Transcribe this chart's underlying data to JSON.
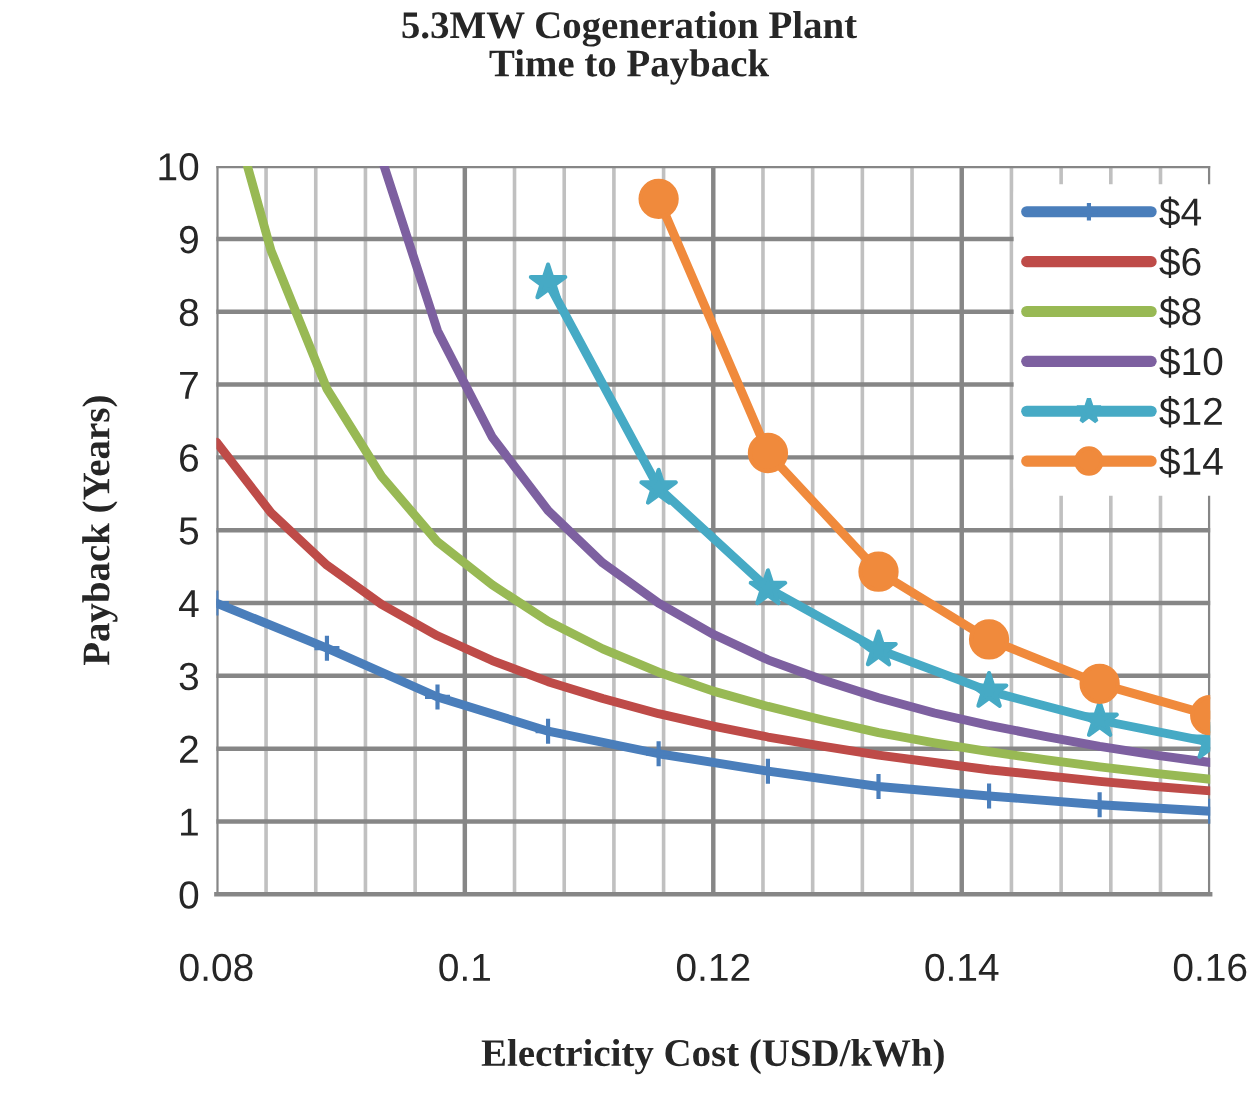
{
  "chart_data": {
    "type": "line",
    "title": "5.3MW Cogeneration Plant\nTime to Payback",
    "xlabel": "Electricity Cost (USD/kWh)",
    "ylabel": "Payback (Years)",
    "xlim": [
      0.08,
      0.16
    ],
    "ylim": [
      0,
      10
    ],
    "xticks": [
      0.08,
      {
        "value": 0.084,
        "label": null
      },
      {
        "value": 0.088,
        "label": null
      },
      {
        "value": 0.092,
        "label": null
      },
      {
        "value": 0.096,
        "label": null
      },
      {
        "value": 0.1,
        "label": "0.1"
      },
      {
        "value": 0.104,
        "label": null
      },
      {
        "value": 0.108,
        "label": null
      },
      {
        "value": 0.112,
        "label": null
      },
      {
        "value": 0.116,
        "label": null
      },
      0.12,
      {
        "value": 0.124,
        "label": null
      },
      {
        "value": 0.128,
        "label": null
      },
      {
        "value": 0.132,
        "label": null
      },
      {
        "value": 0.136,
        "label": null
      },
      0.14,
      {
        "value": 0.144,
        "label": null
      },
      {
        "value": 0.148,
        "label": null
      },
      {
        "value": 0.152,
        "label": null
      },
      {
        "value": 0.156,
        "label": null
      },
      0.16
    ],
    "yticks": [
      0,
      1,
      2,
      3,
      4,
      5,
      6,
      7,
      8,
      9,
      10
    ],
    "grid": true,
    "legend": "top right",
    "series": [
      {
        "name": "$4",
        "color": "#4a7ebb",
        "marker": "cross",
        "x": [
          0.08,
          0.0889,
          0.0978,
          0.1067,
          0.1156,
          0.1244,
          0.1333,
          0.1422,
          0.1511,
          0.16
        ],
        "values": [
          4.0,
          3.38,
          2.71,
          2.24,
          1.93,
          1.69,
          1.48,
          1.35,
          1.23,
          1.14
        ]
      },
      {
        "name": "$6",
        "color": "#be4b48",
        "x": [
          0.08,
          0.0844,
          0.0889,
          0.0933,
          0.0978,
          0.1022,
          0.1067,
          0.1111,
          0.1156,
          0.12,
          0.1244,
          0.1289,
          0.1333,
          0.1378,
          0.1422,
          0.1467,
          0.1511,
          0.1556,
          0.16
        ],
        "values": [
          6.21,
          5.24,
          4.52,
          3.98,
          3.55,
          3.21,
          2.92,
          2.69,
          2.48,
          2.31,
          2.16,
          2.03,
          1.91,
          1.81,
          1.71,
          1.63,
          1.55,
          1.48,
          1.42
        ]
      },
      {
        "name": "$8",
        "color": "#98b954",
        "x": [
          0.0825,
          0.0844,
          0.0889,
          0.0933,
          0.0978,
          0.1022,
          0.1067,
          0.1111,
          0.1156,
          0.12,
          0.1244,
          0.1289,
          0.1333,
          0.1378,
          0.1422,
          0.1467,
          0.1511,
          0.1556,
          0.16
        ],
        "values": [
          10.0,
          8.84,
          6.94,
          5.74,
          4.84,
          4.25,
          3.75,
          3.37,
          3.05,
          2.79,
          2.58,
          2.39,
          2.22,
          2.08,
          1.96,
          1.85,
          1.75,
          1.66,
          1.58
        ]
      },
      {
        "name": "$10",
        "color": "#7d60a0",
        "x": [
          0.0935,
          0.0978,
          0.1022,
          0.1067,
          0.1111,
          0.1156,
          0.12,
          0.1244,
          0.1289,
          0.1333,
          0.1378,
          0.1422,
          0.1467,
          0.1511,
          0.1556,
          0.16
        ],
        "values": [
          10.0,
          7.74,
          6.28,
          5.27,
          4.55,
          4.0,
          3.57,
          3.22,
          2.94,
          2.7,
          2.49,
          2.32,
          2.17,
          2.03,
          1.91,
          1.81
        ]
      },
      {
        "name": "$12",
        "color": "#46aac5",
        "marker": "star",
        "x": [
          0.1067,
          0.1156,
          0.1244,
          0.1333,
          0.1422,
          0.1511,
          0.16
        ],
        "values": [
          8.4,
          5.58,
          4.2,
          3.36,
          2.79,
          2.39,
          2.09
        ]
      },
      {
        "name": "$14",
        "color": "#f08a3c",
        "marker": "circle",
        "x": [
          0.1156,
          0.1244,
          0.1333,
          0.1422,
          0.1511,
          0.16
        ],
        "values": [
          9.55,
          6.06,
          4.43,
          3.5,
          2.89,
          2.46
        ]
      }
    ]
  }
}
